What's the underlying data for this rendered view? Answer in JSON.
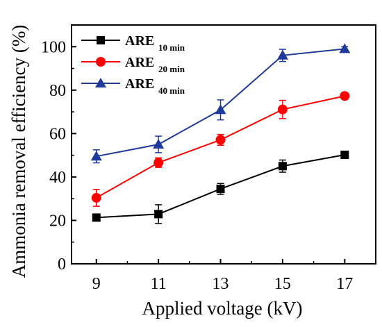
{
  "chart_data": {
    "type": "line",
    "xlabel": "Applied voltage (kV)",
    "ylabel": "Ammonia removal efficiency (%)",
    "x": [
      9,
      11,
      13,
      15,
      17
    ],
    "x_ticks": [
      "9",
      "11",
      "13",
      "15",
      "17"
    ],
    "y_ticks": [
      "0",
      "20",
      "40",
      "60",
      "80",
      "100"
    ],
    "xlim": [
      8.2,
      18.0
    ],
    "ylim": [
      0,
      110
    ],
    "grid": false,
    "legend_position": "top-left",
    "series": [
      {
        "name": "ARE",
        "name_sub": "10 min",
        "color": "#000000",
        "marker": "square",
        "values": [
          21.3,
          22.9,
          34.5,
          45.0,
          50.2
        ],
        "errors": [
          1.0,
          4.3,
          2.5,
          2.8,
          1.0
        ]
      },
      {
        "name": "ARE",
        "name_sub": "20 min",
        "color": "#ff0000",
        "marker": "circle",
        "values": [
          30.4,
          46.6,
          57.1,
          71.1,
          77.3
        ],
        "errors": [
          3.9,
          2.2,
          2.5,
          4.2,
          1.0
        ]
      },
      {
        "name": "ARE",
        "name_sub": "40 min",
        "color": "#1f3a9a",
        "marker": "triangle",
        "values": [
          49.5,
          55.0,
          70.9,
          96.0,
          99.0
        ],
        "errors": [
          3.0,
          3.8,
          4.6,
          2.8,
          1.0
        ]
      }
    ]
  }
}
